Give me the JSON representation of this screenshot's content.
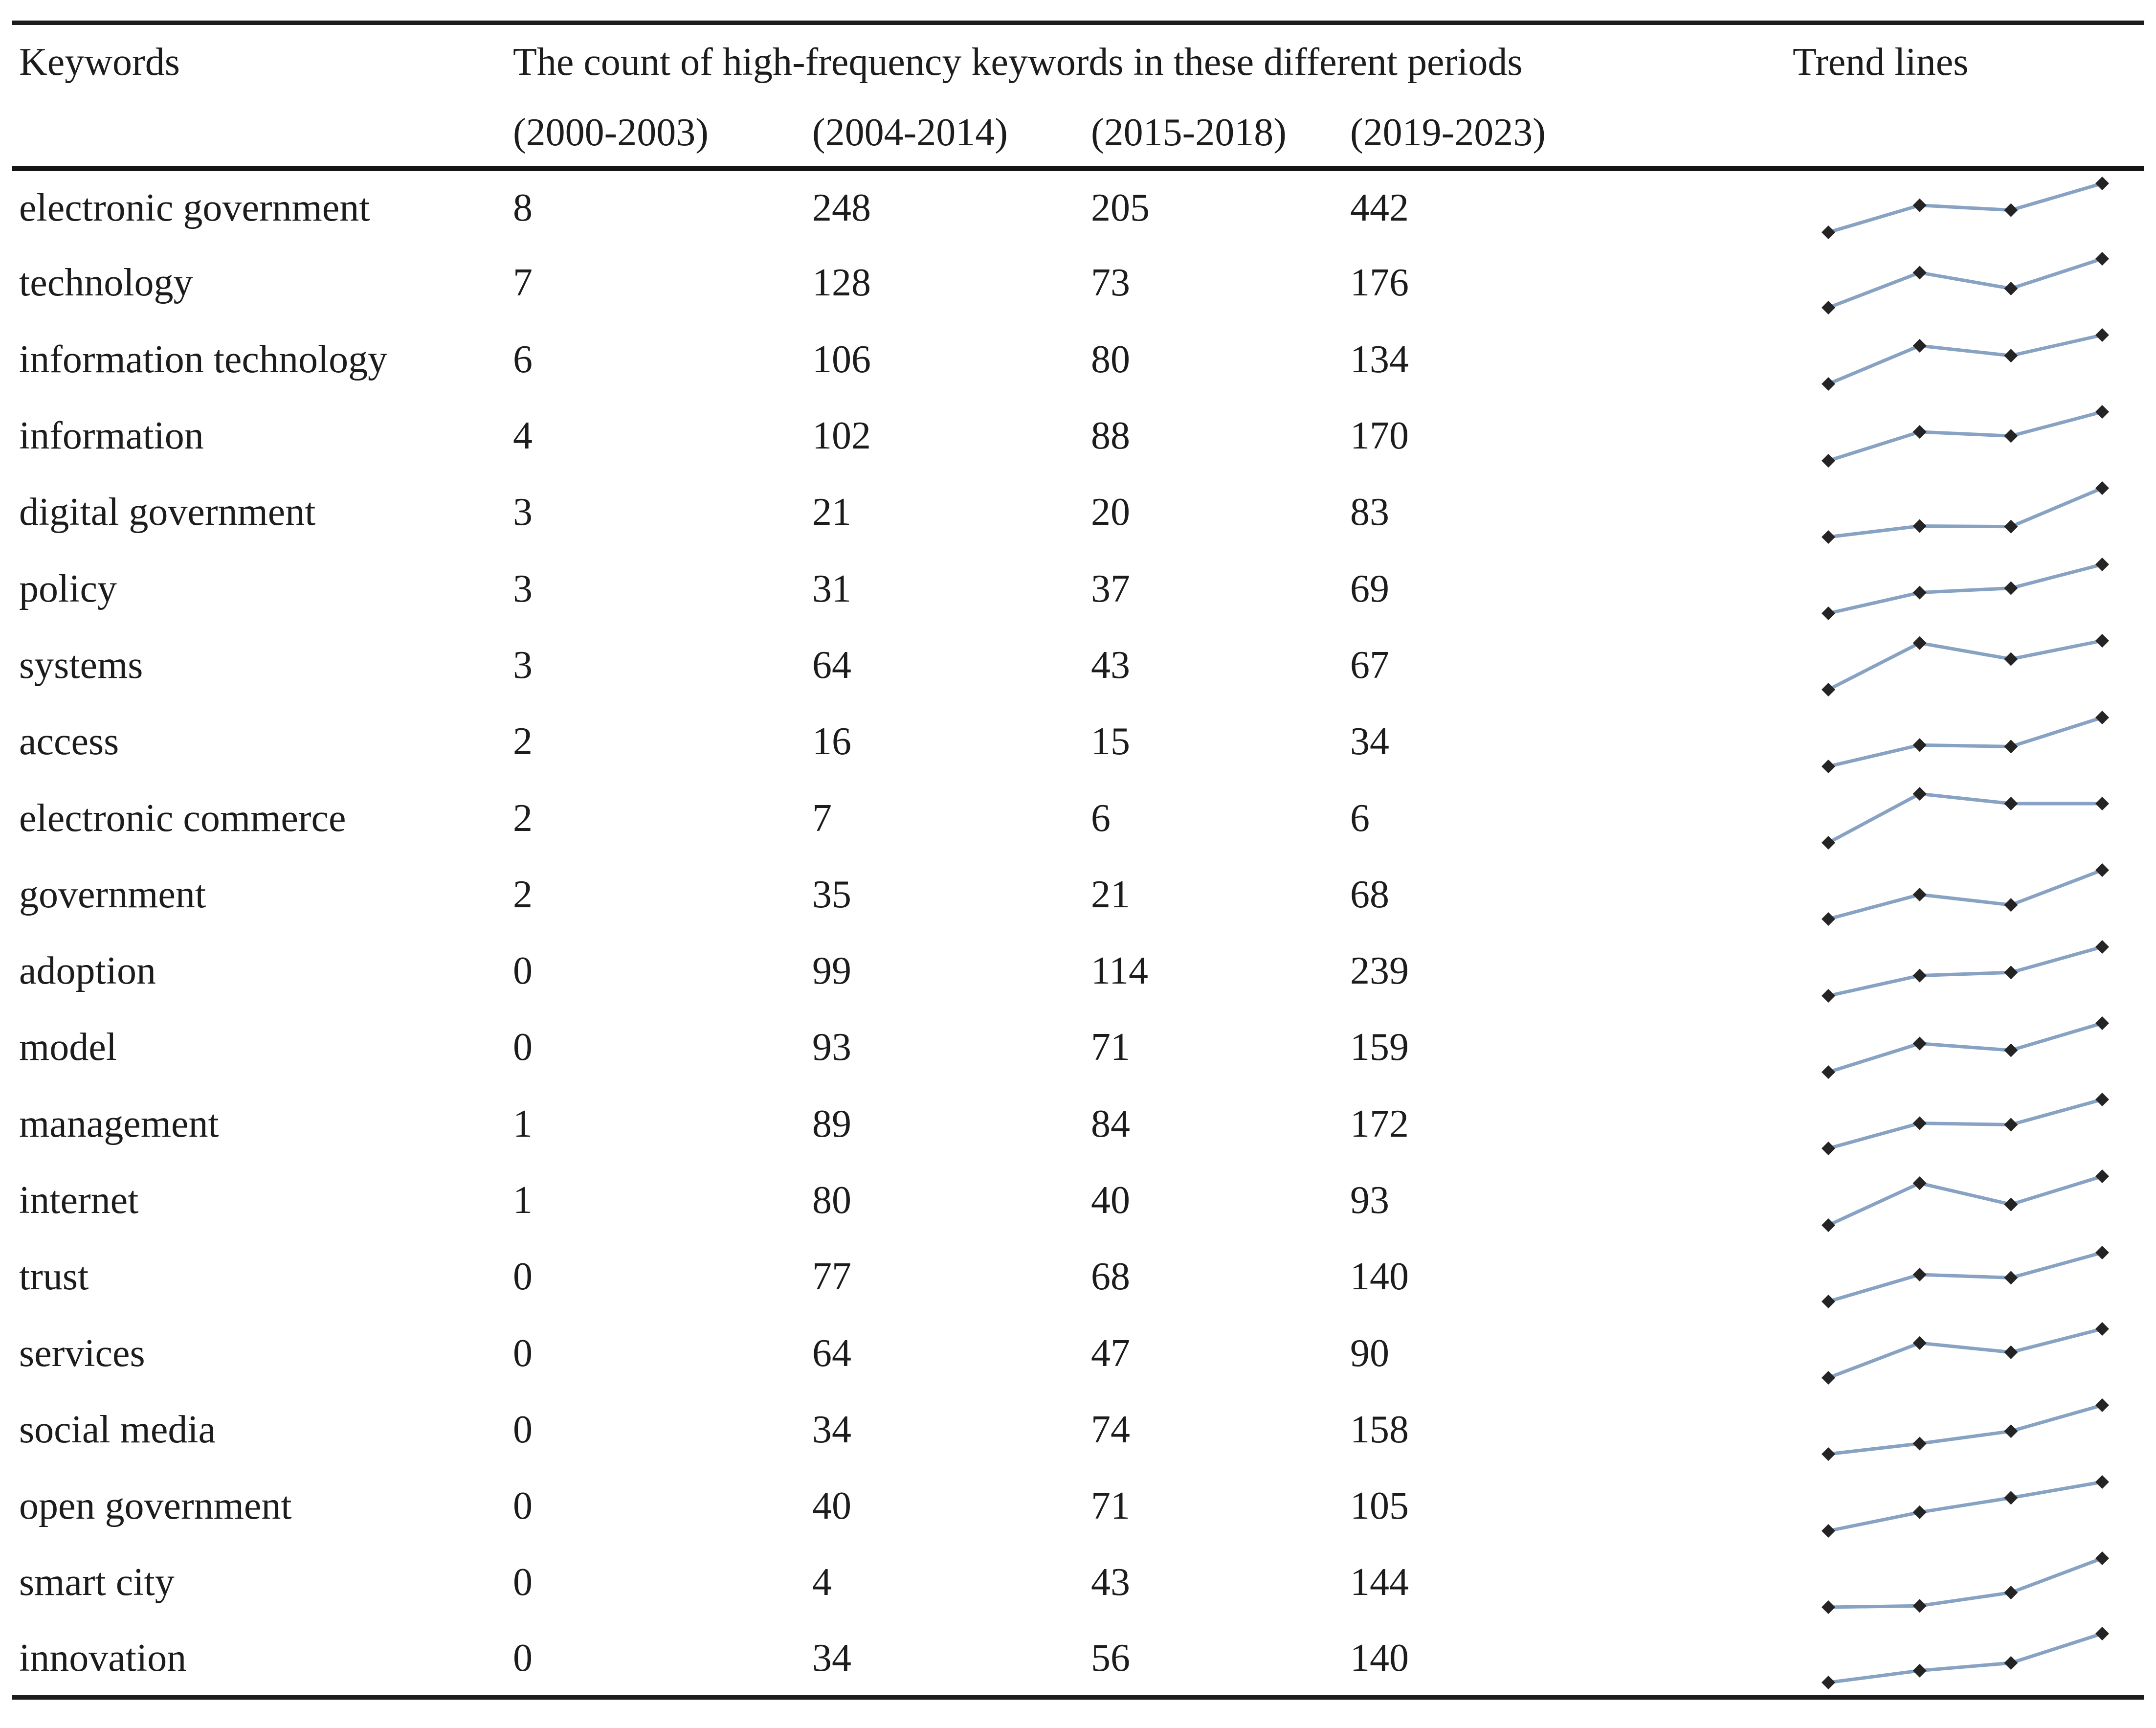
{
  "page": {
    "background": "#ffffff"
  },
  "table": {
    "header": {
      "keywords_label": "Keywords",
      "count_group_label": "The count of high-frequency keywords in these different periods",
      "trend_label": "Trend lines",
      "period_labels": [
        "(2000-2003)",
        "(2004-2014)",
        "(2015-2018)",
        "(2019-2023)"
      ]
    },
    "colors": {
      "text": "#1c1c1c",
      "rule": "#1c1c1c",
      "spark_line": "#87a2c2",
      "spark_marker": "#242424"
    },
    "rows": [
      {
        "keyword": "electronic government",
        "counts": [
          8,
          248,
          205,
          442
        ]
      },
      {
        "keyword": "technology",
        "counts": [
          7,
          128,
          73,
          176
        ]
      },
      {
        "keyword": "information technology",
        "counts": [
          6,
          106,
          80,
          134
        ]
      },
      {
        "keyword": "information",
        "counts": [
          4,
          102,
          88,
          170
        ]
      },
      {
        "keyword": "digital government",
        "counts": [
          3,
          21,
          20,
          83
        ]
      },
      {
        "keyword": "policy",
        "counts": [
          3,
          31,
          37,
          69
        ]
      },
      {
        "keyword": "systems",
        "counts": [
          3,
          64,
          43,
          67
        ]
      },
      {
        "keyword": "access",
        "counts": [
          2,
          16,
          15,
          34
        ]
      },
      {
        "keyword": "electronic commerce",
        "counts": [
          2,
          7,
          6,
          6
        ]
      },
      {
        "keyword": "government",
        "counts": [
          2,
          35,
          21,
          68
        ]
      },
      {
        "keyword": "adoption",
        "counts": [
          0,
          99,
          114,
          239
        ]
      },
      {
        "keyword": "model",
        "counts": [
          0,
          93,
          71,
          159
        ]
      },
      {
        "keyword": "management",
        "counts": [
          1,
          89,
          84,
          172
        ]
      },
      {
        "keyword": "internet",
        "counts": [
          1,
          80,
          40,
          93
        ]
      },
      {
        "keyword": "trust",
        "counts": [
          0,
          77,
          68,
          140
        ]
      },
      {
        "keyword": "services",
        "counts": [
          0,
          64,
          47,
          90
        ]
      },
      {
        "keyword": "social media",
        "counts": [
          0,
          34,
          74,
          158
        ]
      },
      {
        "keyword": "open government",
        "counts": [
          0,
          40,
          71,
          105
        ]
      },
      {
        "keyword": "smart city",
        "counts": [
          0,
          4,
          43,
          144
        ]
      },
      {
        "keyword": "innovation",
        "counts": [
          0,
          34,
          56,
          140
        ]
      }
    ]
  },
  "chart_data": {
    "type": "line",
    "description": "Row sparklines: keyword count trend across four periods, normalized min-max per row",
    "x_categories": [
      "2000-2003",
      "2004-2014",
      "2015-2018",
      "2019-2023"
    ],
    "legend_position": "none",
    "grid": false,
    "series": [
      {
        "name": "electronic government",
        "values": [
          8,
          248,
          205,
          442
        ]
      },
      {
        "name": "technology",
        "values": [
          7,
          128,
          73,
          176
        ]
      },
      {
        "name": "information technology",
        "values": [
          6,
          106,
          80,
          134
        ]
      },
      {
        "name": "information",
        "values": [
          4,
          102,
          88,
          170
        ]
      },
      {
        "name": "digital government",
        "values": [
          3,
          21,
          20,
          83
        ]
      },
      {
        "name": "policy",
        "values": [
          3,
          31,
          37,
          69
        ]
      },
      {
        "name": "systems",
        "values": [
          3,
          64,
          43,
          67
        ]
      },
      {
        "name": "access",
        "values": [
          2,
          16,
          15,
          34
        ]
      },
      {
        "name": "electronic commerce",
        "values": [
          2,
          7,
          6,
          6
        ]
      },
      {
        "name": "government",
        "values": [
          2,
          35,
          21,
          68
        ]
      },
      {
        "name": "adoption",
        "values": [
          0,
          99,
          114,
          239
        ]
      },
      {
        "name": "model",
        "values": [
          0,
          93,
          71,
          159
        ]
      },
      {
        "name": "management",
        "values": [
          1,
          89,
          84,
          172
        ]
      },
      {
        "name": "internet",
        "values": [
          1,
          80,
          40,
          93
        ]
      },
      {
        "name": "trust",
        "values": [
          0,
          77,
          68,
          140
        ]
      },
      {
        "name": "services",
        "values": [
          0,
          64,
          47,
          90
        ]
      },
      {
        "name": "social media",
        "values": [
          0,
          34,
          74,
          158
        ]
      },
      {
        "name": "open government",
        "values": [
          0,
          40,
          71,
          105
        ]
      },
      {
        "name": "smart city",
        "values": [
          0,
          4,
          43,
          144
        ]
      },
      {
        "name": "innovation",
        "values": [
          0,
          34,
          56,
          140
        ]
      }
    ]
  }
}
